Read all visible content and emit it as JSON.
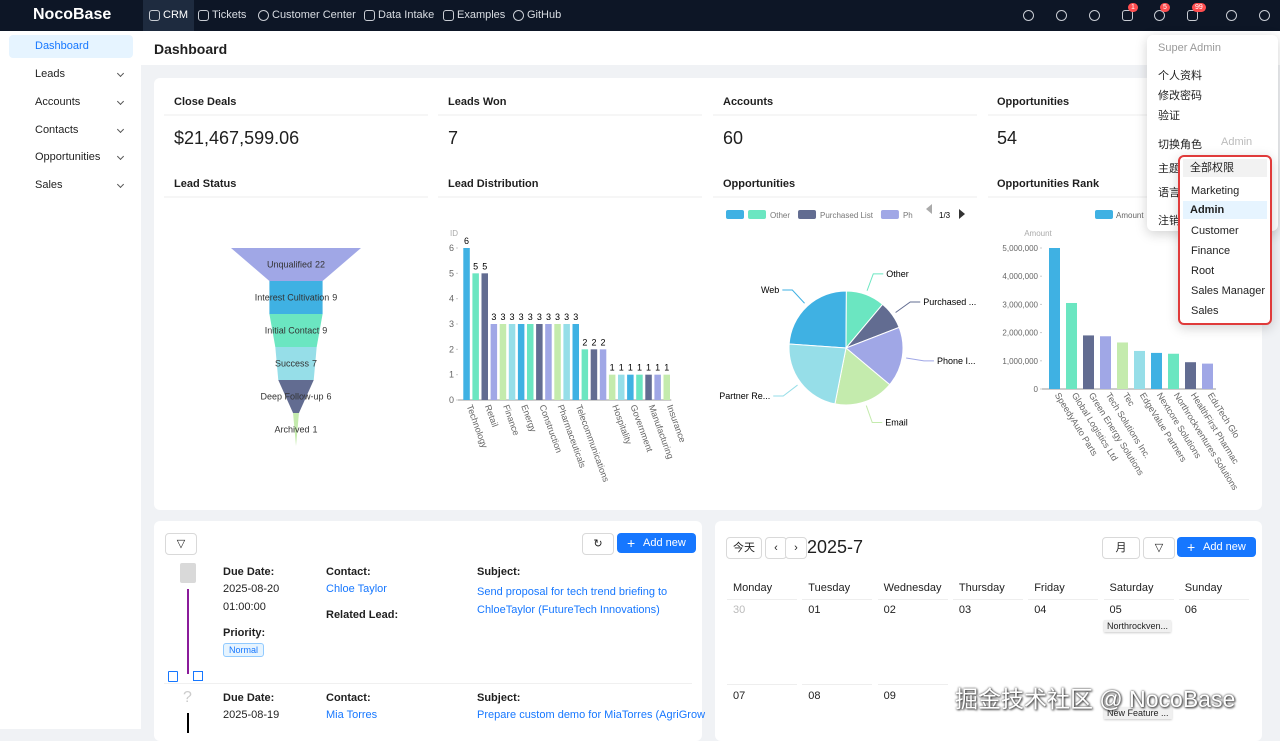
{
  "topbar": {
    "logo": "NocoBase",
    "nav": [
      "CRM",
      "Tickets",
      "Customer Center",
      "Data Intake",
      "Examples",
      "GitHub"
    ],
    "badges": [
      1,
      5,
      99
    ]
  },
  "sidebar": [
    "Dashboard",
    "Leads",
    "Accounts",
    "Contacts",
    "Opportunities",
    "Sales"
  ],
  "page_title": "Dashboard",
  "stats": [
    {
      "label": "Close Deals",
      "value": "$21,467,599.06"
    },
    {
      "label": "Leads Won",
      "value": "7"
    },
    {
      "label": "Accounts",
      "value": "60"
    },
    {
      "label": "Opportunities",
      "value": "54"
    }
  ],
  "lead_status": {
    "type": "funnel",
    "title": "Lead Status",
    "categories": [
      "Unqualified",
      "Interest Cultivation",
      "Initial Contact",
      "Success",
      "Deep Follow-up",
      "Archived"
    ],
    "values": [
      22,
      9,
      9,
      7,
      6,
      1
    ],
    "colors": [
      "#a0a7e6",
      "#3fb1e3",
      "#6be6c1",
      "#96dee8",
      "#626c91",
      "#c4ebad"
    ]
  },
  "lead_distribution": {
    "type": "bar",
    "title": "Lead Distribution",
    "y_label": "ID",
    "categories": [
      "Technology",
      null,
      "Retail",
      null,
      "Finance",
      null,
      "Energy",
      null,
      "Construction",
      null,
      "Pharmaceuticals",
      null,
      "Telecommunications",
      null,
      null,
      null,
      "Hospitality",
      null,
      "Government",
      null,
      "Manufacturing",
      null,
      "Insurance"
    ],
    "values": [
      6,
      5,
      5,
      3,
      3,
      3,
      3,
      3,
      3,
      3,
      3,
      3,
      3,
      2,
      2,
      2,
      1,
      1,
      1,
      1,
      1,
      1,
      1
    ],
    "ylim": [
      0,
      6
    ],
    "yticks": [
      0,
      1,
      2,
      3,
      4,
      5,
      6
    ],
    "colors": [
      "#3fb1e3",
      "#6be6c1",
      "#626c91",
      "#a0a7e6",
      "#c4ebad",
      "#96dee8"
    ]
  },
  "opportunities": {
    "type": "pie",
    "title": "Opportunities",
    "categories": [
      "Web",
      "Other",
      "Purchased ...",
      "Phone I...",
      "Email",
      "Partner Re..."
    ],
    "values": [
      24,
      11,
      8,
      17,
      17,
      23
    ],
    "colors": [
      "#3fb1e3",
      "#6be6c1",
      "#626c91",
      "#a0a7e6",
      "#c4ebad",
      "#96dee8"
    ],
    "legend": [
      {
        "color": "#3fb1e3"
      },
      {
        "name": "Other",
        "color": "#6be6c1"
      },
      {
        "name": "Purchased List",
        "color": "#626c91"
      },
      {
        "name": "Ph",
        "color": "#a0a7e6"
      }
    ],
    "legend_page": "1/3"
  },
  "opportunities_rank": {
    "type": "bar",
    "title": "Opportunities Rank",
    "legend": "Amount",
    "y_label": "Amount",
    "categories": [
      "SpeedyAuto Parts",
      "Global Logistics Ltd",
      "Green Energy Solutions",
      "Tech Solutions Inc.",
      "Tec",
      "EdgeValue Partners",
      "Nextcore Solutions",
      "Northrockventures Solutions",
      "HealthFirst Pharmac",
      "EduTech Glo"
    ],
    "values": [
      5000000,
      3050000,
      1900000,
      1870000,
      1650000,
      1350000,
      1280000,
      1250000,
      950000,
      900000
    ],
    "ylim": [
      0,
      5000000
    ],
    "yticks": [
      0,
      {
        "value": 1000000,
        "label": "1,000,000"
      },
      {
        "value": 2000000,
        "label": "2,000,000"
      },
      {
        "value": 3000000,
        "label": "3,000,000"
      },
      {
        "value": 4000000,
        "label": "4,000,000"
      },
      {
        "value": 5000000,
        "label": "5,000,000"
      }
    ],
    "colors": [
      "#3fb1e3",
      "#6be6c1",
      "#626c91",
      "#a0a7e6",
      "#c4ebad",
      "#96dee8"
    ]
  },
  "user_menu": {
    "header": "Super Admin",
    "items": [
      "个人资料",
      "修改密码",
      "验证"
    ],
    "switch_role": "切换角色",
    "current_role": "Admin",
    "more": [
      "主题",
      "语言",
      "注销"
    ],
    "roles": [
      "全部权限",
      "Marketing",
      "Admin",
      "Customer",
      "Finance",
      "Root",
      "Sales Manager",
      "Sales"
    ]
  },
  "tasks": {
    "add_new": "Add new",
    "items": [
      {
        "due_label": "Due Date:",
        "due_date": "2025-08-20",
        "due_time": "01:00:00",
        "contact_label": "Contact:",
        "contact": "Chloe Taylor",
        "related_label": "Related Lead:",
        "subject_label": "Subject:",
        "subject": "Send proposal for tech trend briefing to ChloeTaylor (FutureTech Innovations)",
        "priority_label": "Priority:",
        "priority": "Normal"
      },
      {
        "due_label": "Due Date:",
        "due_date": "2025-08-19",
        "contact_label": "Contact:",
        "contact": "Mia Torres",
        "subject_label": "Subject:",
        "subject": "Prepare custom demo for MiaTorres (AgriGrow"
      }
    ]
  },
  "calendar": {
    "today": "今天",
    "month": "2025-7",
    "view": "月",
    "add_new": "Add new",
    "weekdays": [
      "Monday",
      "Tuesday",
      "Wednesday",
      "Thursday",
      "Friday",
      "Saturday",
      "Sunday"
    ],
    "weeks": [
      [
        "30",
        "01",
        "02",
        "03",
        "04",
        "05",
        "06"
      ],
      [
        "07",
        "08",
        "09"
      ]
    ],
    "events": [
      "Northrockven...",
      "New Feature ..."
    ]
  },
  "watermark": "掘金技术社区 @ NocoBase"
}
